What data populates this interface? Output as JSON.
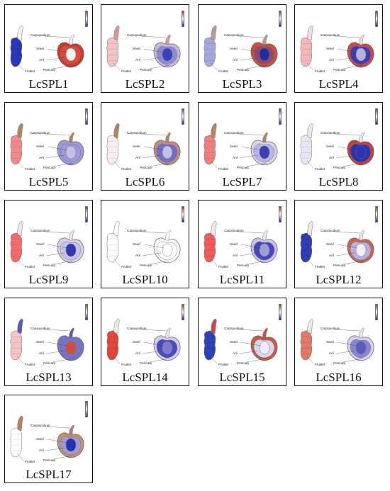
{
  "labels": {
    "carpopodium": "Carpopodium",
    "seed": "Seed",
    "aril": "Aril",
    "fruitlet": "Fruitlet",
    "pericarp": "Pericarp"
  },
  "scale_gradient": [
    "#8b3a1a",
    "#ffffff",
    "#1a1aa0"
  ],
  "panels": [
    {
      "title": "LcSPL1",
      "colors": {
        "fruitlet": "#2b37b8",
        "carpopodium": "#f4f4f4",
        "pericarp": "#d0372a",
        "aril": "#d94a3a",
        "seed": "#f1f1f6"
      }
    },
    {
      "title": "LcSPL2",
      "colors": {
        "fruitlet": "#f3c4c4",
        "carpopodium": "#d29b9b",
        "pericarp": "#c9b8d8",
        "aril": "#8d8cd3",
        "seed": "#3b40c0"
      }
    },
    {
      "title": "LcSPL3",
      "colors": {
        "fruitlet": "#a7a6dc",
        "carpopodium": "#b99a9a",
        "pericarp": "#d44b3a",
        "aril": "#8f4a6a",
        "seed": "#232ca3"
      }
    },
    {
      "title": "LcSPL4",
      "colors": {
        "fruitlet": "#f3b7b9",
        "carpopodium": "#f1dede",
        "pericarp": "#c84a48",
        "aril": "#3d3cb0",
        "seed": "#b6b2e0"
      }
    },
    {
      "title": "LcSPL5",
      "colors": {
        "fruitlet": "#ef8b8b",
        "carpopodium": "#b08560",
        "pericarp": "#9c9ad9",
        "aril": "#9c9ad9",
        "seed": "#c2bfe8"
      }
    },
    {
      "title": "LcSPL6",
      "colors": {
        "fruitlet": "#fbeef0",
        "carpopodium": "#b08560",
        "pericarp": "#c48a7a",
        "aril": "#6f6ecb",
        "seed": "#c2bfe8"
      }
    },
    {
      "title": "LcSPL7",
      "colors": {
        "fruitlet": "#ef7f80",
        "carpopodium": "#b08560",
        "pericarp": "#d9d2ea",
        "aril": "#b8b5e3",
        "seed": "#3b3fb5"
      }
    },
    {
      "title": "LcSPL8",
      "colors": {
        "fruitlet": "#e6e6f4",
        "carpopodium": "#f1e6e6",
        "pericarp": "#c93f35",
        "aril": "#2b33ad",
        "seed": "#2b33ad"
      }
    },
    {
      "title": "LcSPL9",
      "colors": {
        "fruitlet": "#ef6d6d",
        "carpopodium": "#f1e6e6",
        "pericarp": "#d8cfe8",
        "aril": "#c7c2e7",
        "seed": "#3438b0"
      }
    },
    {
      "title": "LcSPL10",
      "colors": {
        "fruitlet": "#ffffff",
        "carpopodium": "#ffffff",
        "pericarp": "#ffffff",
        "aril": "#ffffff",
        "seed": "#ffffff"
      }
    },
    {
      "title": "LcSPL11",
      "colors": {
        "fruitlet": "#ef5c5c",
        "carpopodium": "#f1e6e6",
        "pericarp": "#c9c3e6",
        "aril": "#4648bb",
        "seed": "#9f9cd9"
      }
    },
    {
      "title": "LcSPL12",
      "colors": {
        "fruitlet": "#2f3db6",
        "carpopodium": "#f1e6e6",
        "pericarp": "#c6674f",
        "aril": "#b6b1e2",
        "seed": "#f2eef8"
      }
    },
    {
      "title": "LcSPL13",
      "colors": {
        "fruitlet": "#f3c4c4",
        "carpopodium": "#5a5ab4",
        "pericarp": "#7574c7",
        "aril": "#7574c7",
        "seed": "#d84a3a"
      }
    },
    {
      "title": "LcSPL14",
      "colors": {
        "fruitlet": "#e0463a",
        "carpopodium": "#f1e6e6",
        "pericarp": "#d1cde9",
        "aril": "#4a4cbd",
        "seed": "#7c7ad0"
      }
    },
    {
      "title": "LcSPL15",
      "colors": {
        "fruitlet": "#2c42b6",
        "carpopodium": "#c84a48",
        "pericarp": "#c65a45",
        "aril": "#d9d6ee",
        "seed": "#eeeaf6"
      }
    },
    {
      "title": "LcSPL16",
      "colors": {
        "fruitlet": "#e07a6a",
        "carpopodium": "#f1e6e6",
        "pericarp": "#d7d2ec",
        "aril": "#8886d2",
        "seed": "#5b5cc1"
      }
    },
    {
      "title": "LcSPL17",
      "colors": {
        "fruitlet": "#ffffff",
        "carpopodium": "#b08560",
        "pericarp": "#c49070",
        "aril": "#9c9ad9",
        "seed": "#2a30ad"
      }
    }
  ]
}
